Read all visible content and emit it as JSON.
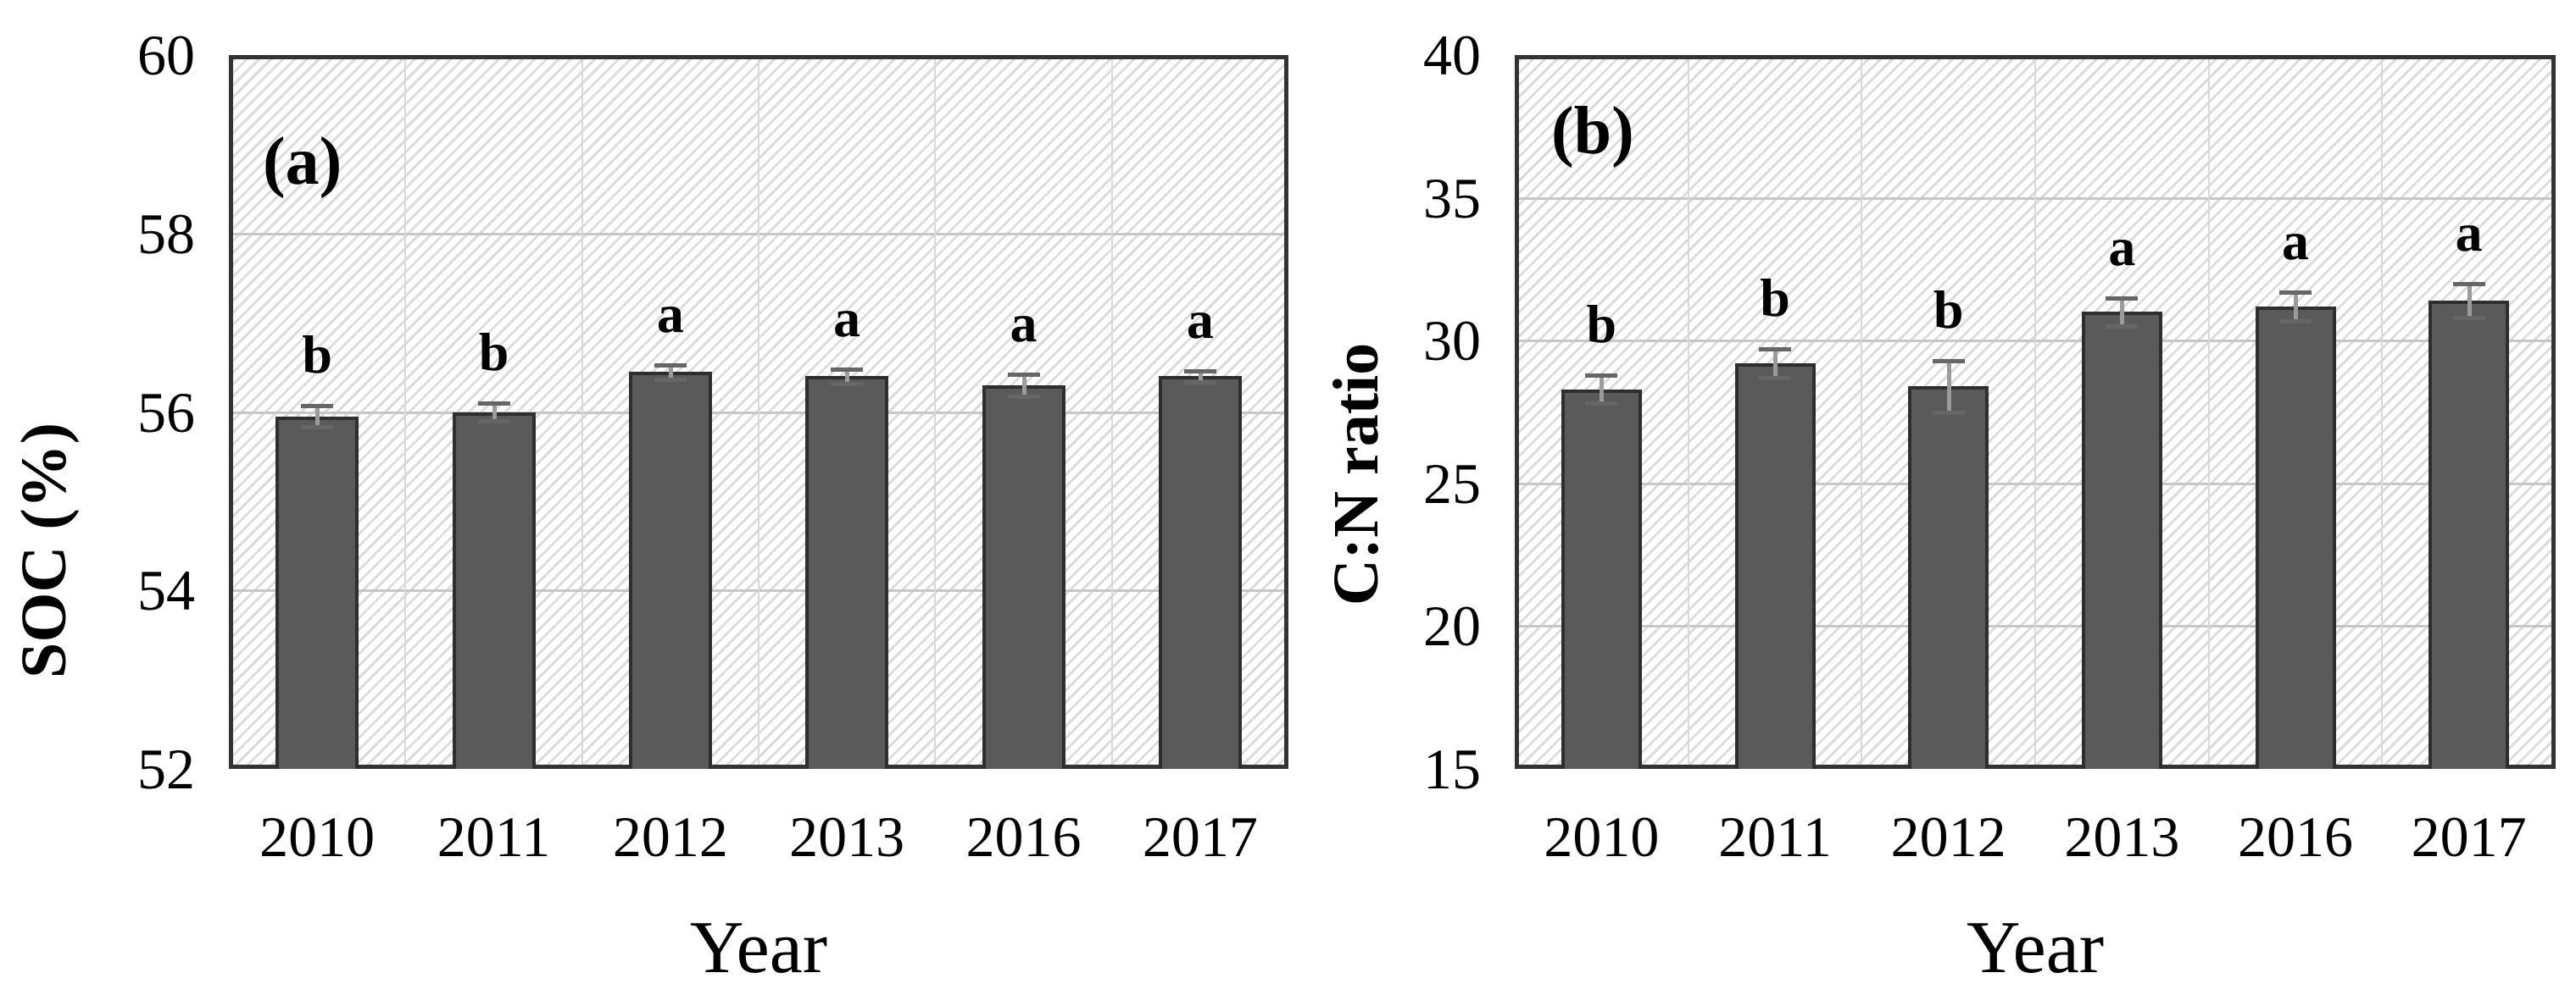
{
  "chart_data": [
    {
      "type": "bar",
      "panel_label": "(a)",
      "xlabel": "Year",
      "ylabel": "SOC (%)",
      "categories": [
        "2010",
        "2011",
        "2012",
        "2013",
        "2016",
        "2017"
      ],
      "values": [
        55.95,
        56.0,
        56.45,
        56.4,
        56.3,
        56.4
      ],
      "errors": [
        0.12,
        0.1,
        0.08,
        0.08,
        0.12,
        0.06
      ],
      "sig_letters": [
        "b",
        "b",
        "a",
        "a",
        "a",
        "a"
      ],
      "ylim": [
        52,
        60
      ],
      "y_ticks": [
        60,
        58,
        56,
        54,
        52
      ],
      "grid": true,
      "legend": false
    },
    {
      "type": "bar",
      "panel_label": "(b)",
      "xlabel": "Year",
      "ylabel": "C:N ratio",
      "categories": [
        "2010",
        "2011",
        "2012",
        "2013",
        "2016",
        "2017"
      ],
      "values": [
        28.3,
        29.2,
        28.4,
        31.0,
        31.2,
        31.4
      ],
      "errors": [
        0.5,
        0.5,
        0.9,
        0.5,
        0.5,
        0.6
      ],
      "sig_letters": [
        "b",
        "b",
        "b",
        "a",
        "a",
        "a"
      ],
      "ylim": [
        15,
        40
      ],
      "y_ticks": [
        40,
        35,
        30,
        25,
        20,
        15
      ],
      "grid": true,
      "legend": false
    }
  ],
  "colors": {
    "bar_fill": "#5a5a5a",
    "bar_border": "#2e2e2e",
    "frame": "#333333",
    "grid_h": "#c7c7c7",
    "grid_v": "#d9d9d9",
    "hatch_line": "#dcdcdc",
    "error_stem": "#9b9b9b",
    "error_cap": "#666666",
    "text": "#000000"
  }
}
